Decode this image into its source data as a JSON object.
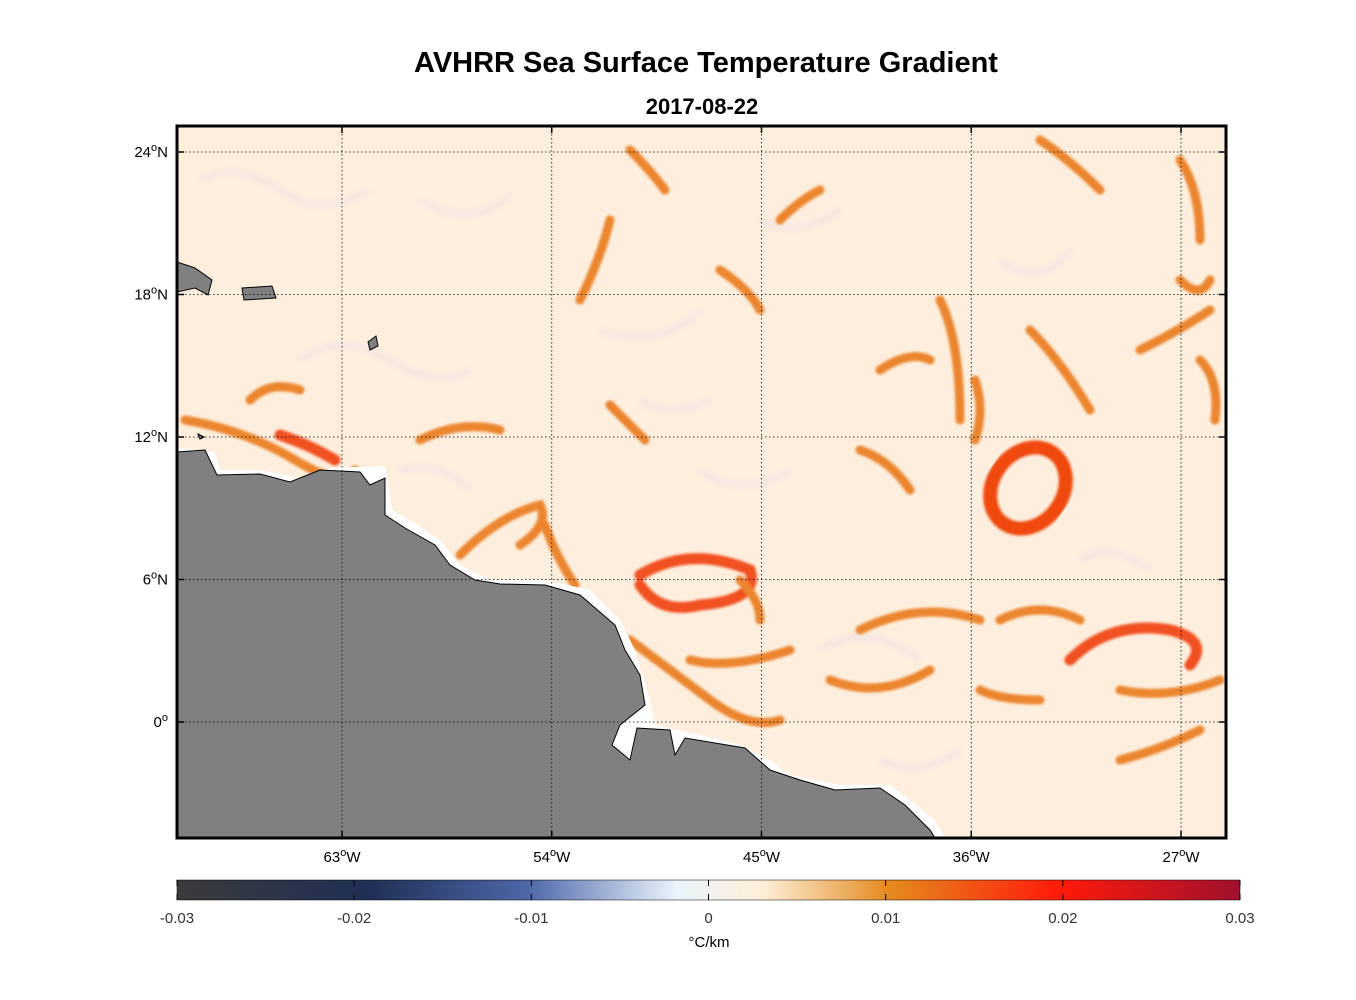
{
  "title": "AVHRR Sea Surface Temperature Gradient",
  "subtitle": "2017-08-22",
  "lat_ticks": [
    {
      "value": 24,
      "label": "24",
      "suffix": "N"
    },
    {
      "value": 18,
      "label": "18",
      "suffix": "N"
    },
    {
      "value": 12,
      "label": "12",
      "suffix": "N"
    },
    {
      "value": 6,
      "label": "6",
      "suffix": "N"
    },
    {
      "value": 0,
      "label": "0",
      "suffix": ""
    }
  ],
  "lon_ticks": [
    {
      "value": -63,
      "label": "63",
      "suffix": "W"
    },
    {
      "value": -54,
      "label": "54",
      "suffix": "W"
    },
    {
      "value": -45,
      "label": "45",
      "suffix": "W"
    },
    {
      "value": -36,
      "label": "36",
      "suffix": "W"
    },
    {
      "value": -27,
      "label": "27",
      "suffix": "W"
    }
  ],
  "colorbar": {
    "ticks": [
      "-0.03",
      "-0.02",
      "-0.01",
      "0",
      "0.01",
      "0.02",
      "0.03"
    ],
    "unit": "°C/km",
    "stops": [
      "#3a3a3a",
      "#1f2f55",
      "#4f67a8",
      "#eaf4fb",
      "#fdf0da",
      "#e58a1e",
      "#ff1a0a",
      "#a0102e"
    ]
  },
  "colors": {
    "land": "#808080",
    "ocean_base": "#fdeedd",
    "front": "#ea7a1a",
    "front_strong": "#f0400c"
  }
}
